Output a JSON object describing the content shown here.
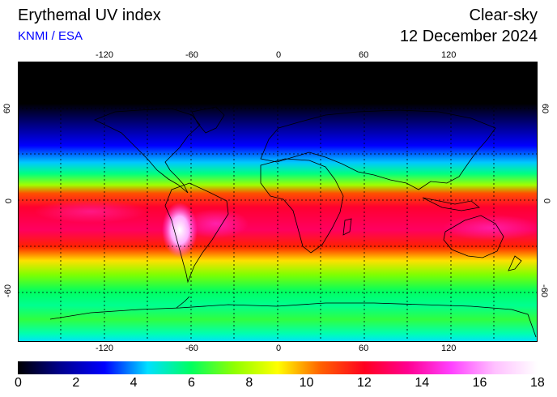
{
  "header": {
    "title": "Erythemal UV index",
    "credit": "KNMI / ESA",
    "mode": "Clear-sky",
    "date": "12 December 2024"
  },
  "map": {
    "lon_ticks": [
      "-120",
      "-60",
      "0",
      "60",
      "120"
    ],
    "lat_ticks": [
      "60",
      "0",
      "-60"
    ]
  },
  "colorbar": {
    "ticks": [
      "0",
      "2",
      "4",
      "6",
      "8",
      "10",
      "12",
      "14",
      "16",
      "18"
    ],
    "colors": [
      "#000000",
      "#000090",
      "#0000ff",
      "#00e0ff",
      "#00ff60",
      "#90ff00",
      "#ffff00",
      "#ff6000",
      "#ff0020",
      "#ff0090",
      "#ff40ff",
      "#ffc0ff",
      "#ffffff"
    ]
  }
}
